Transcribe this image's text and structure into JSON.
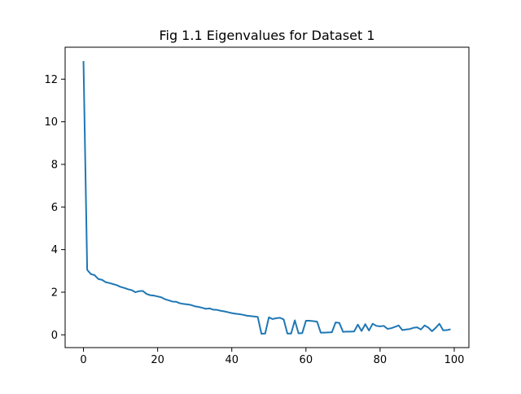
{
  "chart_data": {
    "type": "line",
    "title": "Fig 1.1 Eigenvalues for Dataset 1",
    "xlabel": "",
    "ylabel": "",
    "xlim": [
      -4.95,
      103.95
    ],
    "ylim": [
      -0.6,
      13.5
    ],
    "xticks": [
      0,
      20,
      40,
      60,
      80,
      100
    ],
    "yticks": [
      0,
      2,
      4,
      6,
      8,
      10,
      12
    ],
    "grid": false,
    "legend": "none",
    "line_color": "#1f77b4",
    "series": [
      {
        "x": [
          0,
          1,
          2,
          3,
          4,
          5,
          6,
          7,
          8,
          9,
          10,
          11,
          12,
          13,
          14,
          15,
          16,
          17,
          18,
          19,
          20,
          21,
          22,
          23,
          24,
          25,
          26,
          27,
          28,
          29,
          30,
          31,
          32,
          33,
          34,
          35,
          36,
          37,
          38,
          39,
          40,
          41,
          42,
          43,
          44,
          45,
          46,
          47,
          48,
          49,
          50,
          51,
          52,
          53,
          54,
          55,
          56,
          57,
          58,
          59,
          60,
          61,
          62,
          63,
          64,
          65,
          66,
          67,
          68,
          69,
          70,
          71,
          72,
          73,
          74,
          75,
          76,
          77,
          78,
          79,
          80,
          81,
          82,
          83,
          84,
          85,
          86,
          87,
          88,
          89,
          90,
          91,
          92,
          93,
          94,
          95,
          96,
          97,
          98,
          99
        ],
        "values": [
          12.85,
          3.05,
          2.85,
          2.8,
          2.62,
          2.58,
          2.47,
          2.43,
          2.38,
          2.33,
          2.25,
          2.2,
          2.14,
          2.1,
          2.0,
          2.05,
          2.06,
          1.92,
          1.86,
          1.84,
          1.8,
          1.76,
          1.67,
          1.62,
          1.56,
          1.55,
          1.48,
          1.45,
          1.43,
          1.4,
          1.34,
          1.31,
          1.27,
          1.22,
          1.24,
          1.18,
          1.17,
          1.13,
          1.1,
          1.06,
          1.02,
          0.99,
          0.97,
          0.94,
          0.9,
          0.88,
          0.86,
          0.84,
          0.05,
          0.06,
          0.82,
          0.74,
          0.78,
          0.8,
          0.72,
          0.06,
          0.06,
          0.68,
          0.07,
          0.08,
          0.66,
          0.66,
          0.64,
          0.62,
          0.1,
          0.1,
          0.11,
          0.12,
          0.58,
          0.56,
          0.14,
          0.15,
          0.15,
          0.16,
          0.48,
          0.18,
          0.5,
          0.2,
          0.52,
          0.42,
          0.4,
          0.42,
          0.28,
          0.31,
          0.37,
          0.44,
          0.22,
          0.25,
          0.27,
          0.33,
          0.35,
          0.25,
          0.44,
          0.34,
          0.17,
          0.33,
          0.52,
          0.21,
          0.22,
          0.26
        ]
      }
    ]
  }
}
